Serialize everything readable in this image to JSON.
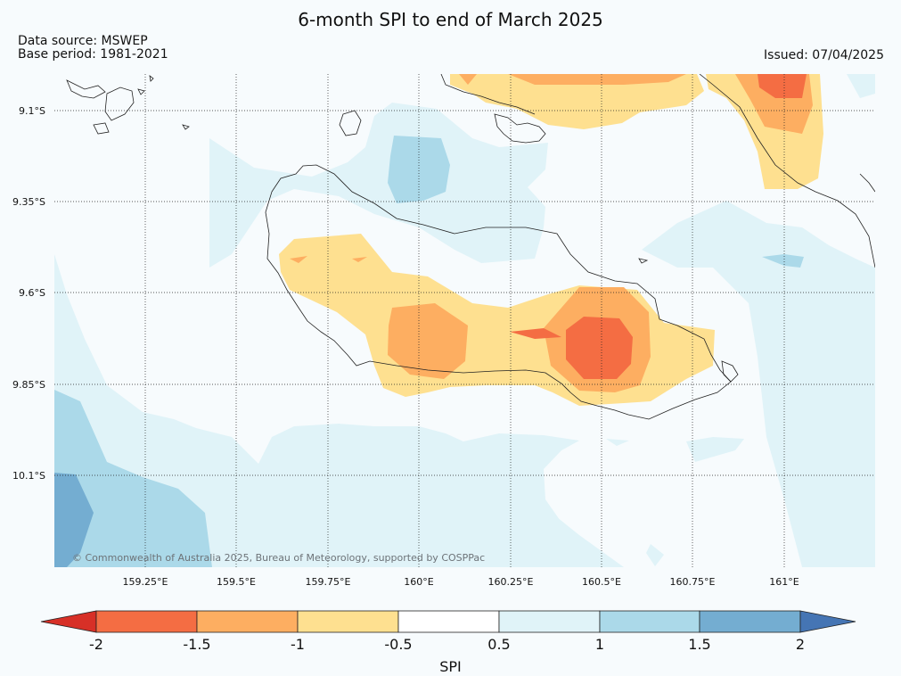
{
  "header": {
    "title": "6-month SPI to end of March 2025",
    "source_line1": "Data source: MSWEP",
    "source_line2": "Base period: 1981-2021",
    "issued": "Issued: 07/04/2025"
  },
  "map": {
    "lat_ticks": [
      "9.1°S",
      "9.35°S",
      "9.6°S",
      "9.85°S",
      "10.1°S"
    ],
    "lon_ticks": [
      "159.25°E",
      "159.5°E",
      "159.75°E",
      "160°E",
      "160.25°E",
      "160.5°E",
      "160.75°E",
      "161°E"
    ],
    "copyright": "© Commonwealth of Australia 2025, Bureau of Meteorology, supported by COSPPac",
    "colors": {
      "spi_below_-2": "#d73027",
      "spi_-2_to_-1.5": "#f46d43",
      "spi_-1.5_to_-1": "#fdae61",
      "spi_-1_to_-0.5": "#fee090",
      "spi_-0.5_to_0.5": "#f7fbfd",
      "spi_0.5_to_1": "#e0f3f8",
      "spi_1_to_1.5": "#abd9e9",
      "spi_1.5_to_2": "#74add1",
      "spi_above_2": "#4575b4"
    }
  },
  "colorbar": {
    "label": "SPI",
    "ticks": [
      "-2",
      "-1.5",
      "-1",
      "-0.5",
      "0.5",
      "1",
      "1.5",
      "2"
    ]
  }
}
